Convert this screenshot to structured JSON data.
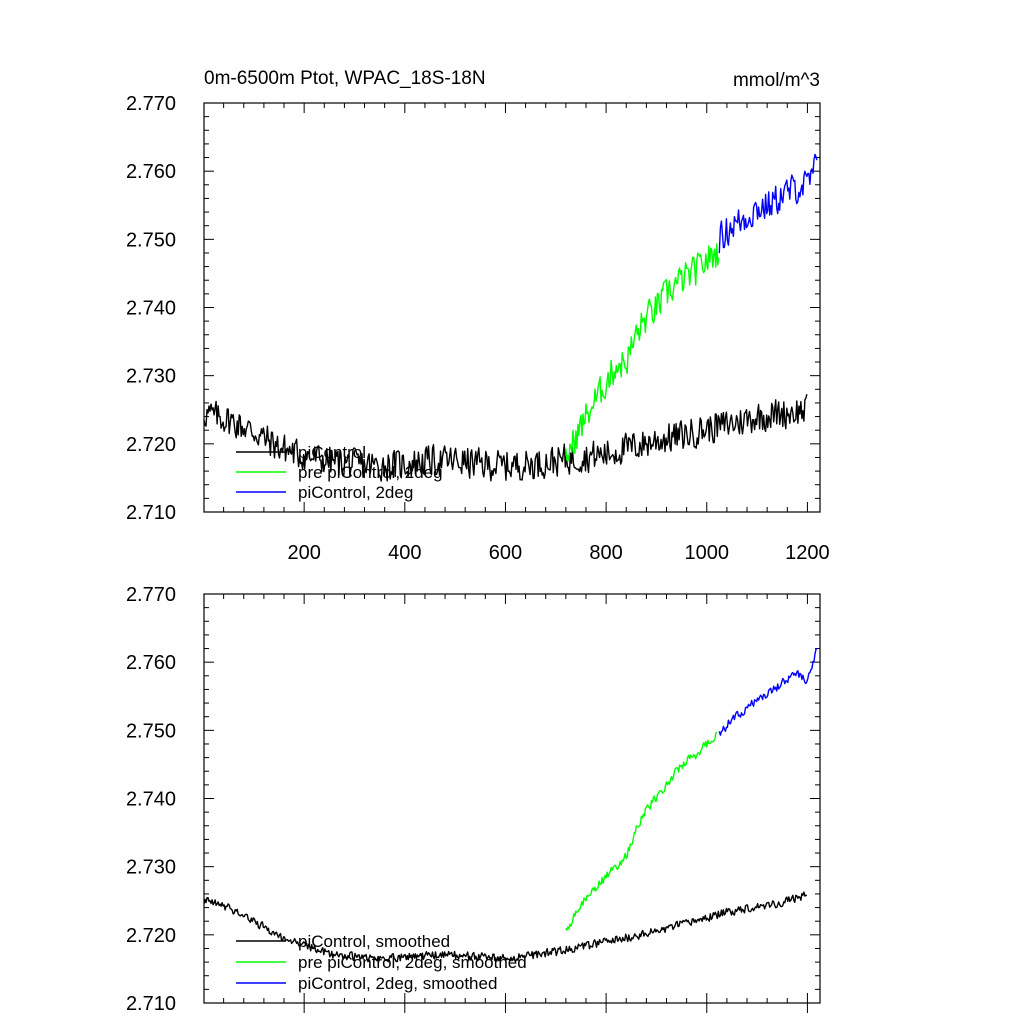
{
  "figure": {
    "title_left": "0m-6500m Ptot, WPAC_18S-18N",
    "title_right": "mmol/m^3"
  },
  "chart_data": [
    {
      "type": "line",
      "title": "0m-6500m Ptot, WPAC_18S-18N",
      "units": "mmol/m^3",
      "xlim": [
        1,
        1225
      ],
      "ylim": [
        2.71,
        2.77
      ],
      "x_ticks": [
        200,
        400,
        600,
        800,
        1000,
        1200
      ],
      "x_tick_labels": [
        "200",
        "400",
        "600",
        "800",
        "1000",
        "1200"
      ],
      "y_ticks": [
        2.71,
        2.72,
        2.73,
        2.74,
        2.75,
        2.76,
        2.77
      ],
      "y_tick_labels": [
        "2.710",
        "2.720",
        "2.730",
        "2.740",
        "2.750",
        "2.760",
        "2.770"
      ],
      "grid": false,
      "legend_position": "bottom-left",
      "series": [
        {
          "name": "piControl",
          "color": "#000000",
          "noise": 0.0022,
          "x": [
            1,
            50,
            100,
            150,
            200,
            250,
            300,
            350,
            400,
            450,
            500,
            550,
            600,
            650,
            700,
            750,
            800,
            850,
            900,
            950,
            1000,
            1050,
            1100,
            1150,
            1200
          ],
          "values": [
            2.7245,
            2.7235,
            2.7218,
            2.7195,
            2.7182,
            2.7175,
            2.717,
            2.7168,
            2.717,
            2.7175,
            2.7175,
            2.717,
            2.7168,
            2.717,
            2.7175,
            2.718,
            2.7185,
            2.7195,
            2.7205,
            2.7212,
            2.7222,
            2.723,
            2.724,
            2.7245,
            2.725
          ]
        },
        {
          "name": "pre piControl, 2deg",
          "color": "#00ff00",
          "noise": 0.0022,
          "x": [
            720,
            740,
            760,
            780,
            800,
            820,
            840,
            860,
            880,
            900,
            920,
            940,
            960,
            980,
            1000,
            1020,
            1025
          ],
          "values": [
            2.718,
            2.721,
            2.724,
            2.7265,
            2.729,
            2.7315,
            2.732,
            2.736,
            2.7385,
            2.74,
            2.742,
            2.7435,
            2.7445,
            2.7455,
            2.747,
            2.748,
            2.7485
          ]
        },
        {
          "name": "piControl, 2deg",
          "color": "#0000ff",
          "noise": 0.0022,
          "x": [
            1025,
            1050,
            1075,
            1100,
            1125,
            1150,
            1175,
            1200,
            1220
          ],
          "values": [
            2.75,
            2.752,
            2.753,
            2.7545,
            2.755,
            2.7565,
            2.7575,
            2.758,
            2.761
          ]
        }
      ]
    },
    {
      "type": "line",
      "xlim": [
        1,
        1225
      ],
      "ylim": [
        2.71,
        2.77
      ],
      "y_ticks": [
        2.71,
        2.72,
        2.73,
        2.74,
        2.75,
        2.76,
        2.77
      ],
      "y_tick_labels": [
        "2.710",
        "2.720",
        "2.730",
        "2.740",
        "2.750",
        "2.760",
        "2.770"
      ],
      "grid": false,
      "legend_position": "bottom-left",
      "series": [
        {
          "name": "piControl, smoothed",
          "color": "#000000",
          "noise": 0.0006,
          "x": [
            1,
            50,
            100,
            150,
            200,
            250,
            300,
            350,
            400,
            450,
            500,
            550,
            600,
            650,
            700,
            750,
            800,
            850,
            900,
            950,
            1000,
            1050,
            1100,
            1150,
            1200
          ],
          "values": [
            2.725,
            2.724,
            2.722,
            2.7198,
            2.7185,
            2.7172,
            2.7168,
            2.7165,
            2.7168,
            2.717,
            2.717,
            2.7168,
            2.7165,
            2.717,
            2.7175,
            2.7182,
            2.719,
            2.7197,
            2.7205,
            2.7215,
            2.7225,
            2.7235,
            2.7242,
            2.7247,
            2.726
          ]
        },
        {
          "name": "pre piControl, 2deg, smoothed",
          "color": "#00ff00",
          "noise": 0.0006,
          "x": [
            720,
            740,
            760,
            780,
            800,
            820,
            840,
            860,
            880,
            900,
            920,
            940,
            960,
            980,
            1000,
            1020
          ],
          "values": [
            2.7205,
            2.723,
            2.7255,
            2.727,
            2.7285,
            2.73,
            2.7315,
            2.7355,
            2.7385,
            2.74,
            2.742,
            2.744,
            2.7455,
            2.7465,
            2.748,
            2.7495
          ]
        },
        {
          "name": "piControl, 2deg, smoothed",
          "color": "#0000ff",
          "noise": 0.0006,
          "x": [
            1025,
            1050,
            1075,
            1100,
            1125,
            1150,
            1175,
            1200,
            1220
          ],
          "values": [
            2.7495,
            2.7515,
            2.753,
            2.7545,
            2.7555,
            2.757,
            2.7585,
            2.757,
            2.762
          ]
        }
      ]
    }
  ]
}
